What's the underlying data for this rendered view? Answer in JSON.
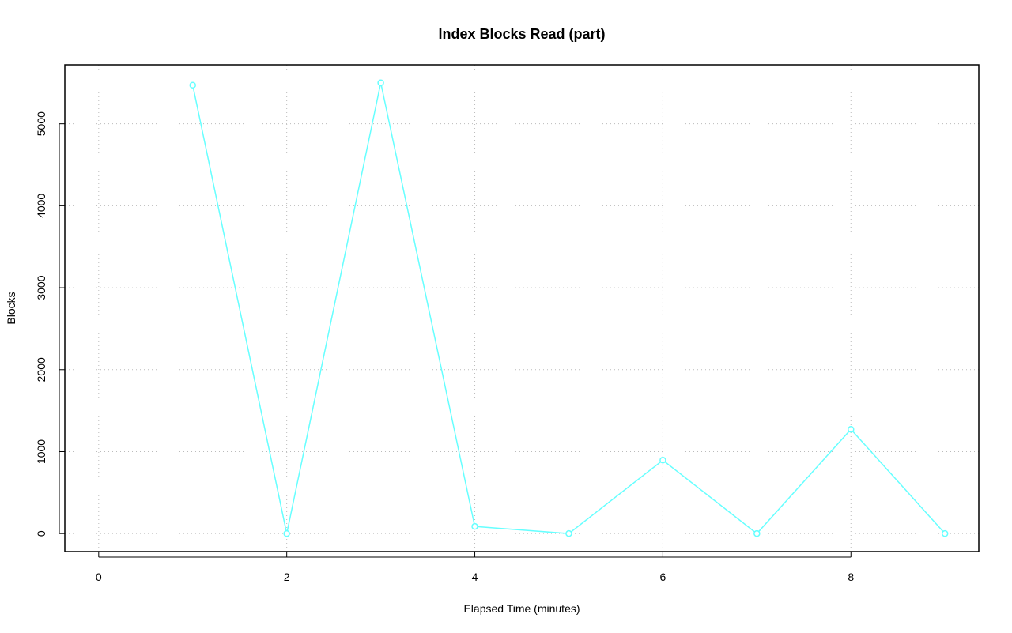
{
  "chart_data": {
    "type": "line",
    "title": "Index Blocks Read (part)",
    "x_label": "Elapsed Time (minutes)",
    "y_label": "Blocks",
    "x": [
      1,
      2,
      3,
      4,
      5,
      6,
      7,
      8,
      9
    ],
    "series": [
      {
        "color": "#66ffff",
        "values": [
          5472,
          0,
          5501,
          87,
          0,
          896,
          0,
          1272,
          0
        ]
      }
    ],
    "xlim": [
      -0.36,
      9.36
    ],
    "xticks": [
      0,
      2,
      4,
      6,
      8
    ],
    "ylim": [
      -220,
      5720
    ],
    "yticks": [
      0,
      1000,
      2000,
      3000,
      4000,
      5000
    ],
    "grid": true
  }
}
